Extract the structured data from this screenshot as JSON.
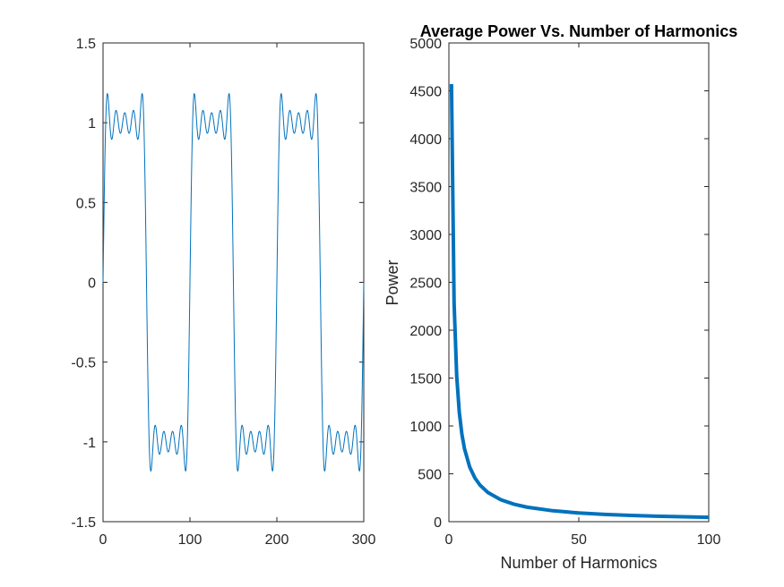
{
  "chart_data": [
    {
      "type": "line",
      "title": "",
      "xlabel": "",
      "ylabel": "",
      "xlim": [
        0,
        300
      ],
      "ylim": [
        -1.5,
        1.5
      ],
      "xticks": [
        0,
        100,
        200,
        300
      ],
      "xtick_labels": [
        "0",
        "100",
        "200",
        "300"
      ],
      "yticks": [
        -1.5,
        -1,
        -0.5,
        0,
        0.5,
        1,
        1.5
      ],
      "ytick_labels": [
        "-1.5",
        "-1",
        "-0.5",
        "0",
        "0.5",
        "1",
        "1.5"
      ],
      "grid": false,
      "series": [
        {
          "description_of_signal": "Fourier partial sum of a square wave, period 100, amplitude 1, odd harmonics 1..9",
          "period": 100,
          "harmonics": [
            1,
            3,
            5,
            7,
            9
          ],
          "x_range": [
            0,
            300
          ],
          "color": "#0072BD"
        }
      ]
    },
    {
      "type": "line",
      "title": "Average Power Vs. Number of Harmonics",
      "xlabel": "Number of Harmonics",
      "ylabel": "Power",
      "xlim": [
        0,
        100
      ],
      "ylim": [
        0,
        5000
      ],
      "xticks": [
        0,
        50,
        100
      ],
      "xtick_labels": [
        "0",
        "50",
        "100"
      ],
      "yticks": [
        0,
        500,
        1000,
        1500,
        2000,
        2500,
        3000,
        3500,
        4000,
        4500,
        5000
      ],
      "ytick_labels": [
        "0",
        "500",
        "1000",
        "1500",
        "2000",
        "2500",
        "3000",
        "3500",
        "4000",
        "4500",
        "5000"
      ],
      "grid": false,
      "series": [
        {
          "x": [
            1,
            2,
            3,
            4,
            5,
            6,
            8,
            10,
            12,
            15,
            20,
            25,
            30,
            40,
            50,
            60,
            70,
            80,
            90,
            100
          ],
          "y": [
            4570,
            2285,
            1523,
            1143,
            914,
            762,
            571,
            457,
            381,
            305,
            229,
            183,
            152,
            114,
            91,
            76,
            65,
            57,
            51,
            46
          ],
          "color": "#0072BD"
        }
      ]
    }
  ]
}
